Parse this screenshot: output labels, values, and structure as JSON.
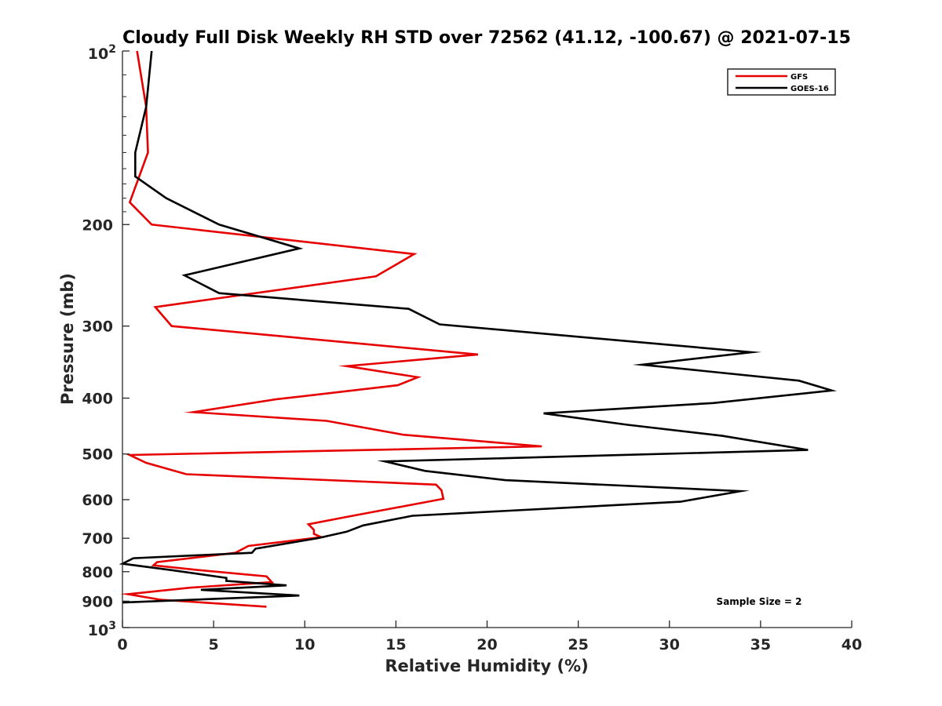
{
  "chart_data": {
    "type": "line",
    "title": "Cloudy Full Disk Weekly RH STD over 72562 (41.12, -100.67) @ 2021-07-15",
    "xlabel": "Relative Humidity (%)",
    "ylabel": "Pressure (mb)",
    "xlim": [
      0,
      40
    ],
    "ylim": [
      100,
      1000
    ],
    "y_scale": "log",
    "y_reversed": true,
    "x_ticks": [
      "0",
      "5",
      "10",
      "15",
      "20",
      "25",
      "30",
      "35",
      "40"
    ],
    "x_tick_values": [
      0,
      5,
      10,
      15,
      20,
      25,
      30,
      35,
      40
    ],
    "y_ticks": [
      "200",
      "300",
      "400",
      "500",
      "600",
      "700",
      "800",
      "900"
    ],
    "y_tick_values": [
      200,
      300,
      400,
      500,
      600,
      700,
      800,
      900
    ],
    "y_end_ticks": [
      {
        "base": "10",
        "exp": "2",
        "value": 100
      },
      {
        "base": "10",
        "exp": "3",
        "value": 1000
      }
    ],
    "grid": false,
    "legend_position": "top-right",
    "annotation": "Sample Size = 2",
    "series": [
      {
        "name": "GFS",
        "color": "#e60000",
        "x": [
          0.8,
          1.3,
          1.4,
          0.4,
          1.6,
          16.0,
          13.9,
          1.8,
          2.7,
          19.5,
          12.3,
          16.2,
          15.1,
          8.4,
          3.9,
          11.2,
          15.4,
          23.0,
          0.4,
          1.3,
          3.5,
          17.2,
          17.5,
          17.6,
          12.4,
          10.2,
          10.5,
          10.5,
          10.9,
          6.9,
          6.2,
          1.9,
          1.7,
          4.2,
          7.9,
          8.2,
          3.7,
          0.3,
          2.1,
          7.9
        ],
        "y": [
          100,
          125,
          150,
          183,
          200,
          225,
          246,
          278,
          300,
          336,
          352,
          368,
          380,
          402,
          423,
          438,
          463,
          485,
          502,
          518,
          542,
          565,
          578,
          598,
          642,
          662,
          677,
          688,
          697,
          722,
          742,
          770,
          780,
          795,
          815,
          834,
          853,
          875,
          895,
          920
        ]
      },
      {
        "name": "GOES-16",
        "color": "#000000",
        "x": [
          1.6,
          1.3,
          0.7,
          0.7,
          2.4,
          5.3,
          9.7,
          3.4,
          5.3,
          15.7,
          17.4,
          34.5,
          28.5,
          37.1,
          38.9,
          32.4,
          23.1,
          27.7,
          32.9,
          37.6,
          14.4,
          16.6,
          21.0,
          33.9,
          30.6,
          15.9,
          13.2,
          12.3,
          10.7,
          7.3,
          7.1,
          0.6,
          0.0,
          2.7,
          5.7,
          5.7,
          9.0,
          4.3,
          9.7,
          0.0
        ],
        "y": [
          100,
          125,
          150,
          165,
          180,
          200,
          220,
          245,
          263,
          280,
          298,
          333,
          350,
          373,
          388,
          408,
          425,
          445,
          465,
          492,
          515,
          535,
          555,
          580,
          605,
          640,
          665,
          682,
          700,
          730,
          742,
          758,
          775,
          795,
          820,
          830,
          845,
          860,
          880,
          905
        ]
      }
    ]
  }
}
